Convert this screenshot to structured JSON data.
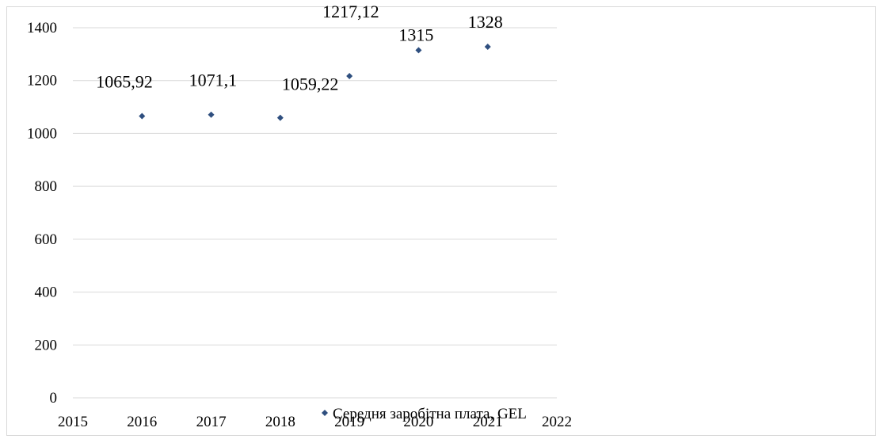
{
  "chart_data": {
    "type": "scatter",
    "series": [
      {
        "name": "Середня заробітна плата, GEL",
        "color": "#2f4f7f",
        "points": [
          {
            "x": 2016,
            "y": 1065.92,
            "label": "1065,92"
          },
          {
            "x": 2017,
            "y": 1071.1,
            "label": "1071,1"
          },
          {
            "x": 2018,
            "y": 1059.22,
            "label": "1059,22"
          },
          {
            "x": 2019,
            "y": 1217.12,
            "label": "1217,12"
          },
          {
            "x": 2020,
            "y": 1315,
            "label": "1315"
          },
          {
            "x": 2021,
            "y": 1328,
            "label": "1328"
          }
        ]
      }
    ],
    "xlim": [
      2015,
      2022
    ],
    "ylim": [
      0,
      1400
    ],
    "xticks": [
      "2015",
      "2016",
      "2017",
      "2018",
      "2019",
      "2020",
      "2021",
      "2022"
    ],
    "yticks": [
      "0",
      "200",
      "400",
      "600",
      "800",
      "1000",
      "1200",
      "1400"
    ],
    "grid": "horizontal",
    "legend_position": "bottom",
    "title": "",
    "xlabel": "",
    "ylabel": ""
  }
}
